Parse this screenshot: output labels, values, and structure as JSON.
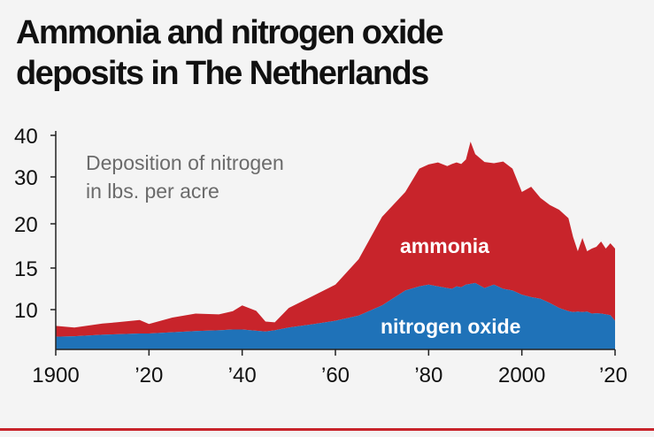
{
  "title_line1": "Ammonia and nitrogen oxide",
  "title_line2": "deposits in The Netherlands",
  "colors": {
    "ammonia": "#c8242b",
    "nitrogen_oxide": "#1f72b8",
    "axis": "#222222",
    "subtitle": "#6b6b6b",
    "rule": "#c8242b"
  },
  "chart_data": {
    "type": "area",
    "stacked": true,
    "subtitle_line1": "Deposition of nitrogen",
    "subtitle_line2": "in lbs. per acre",
    "x": [
      1900,
      1904,
      1910,
      1913,
      1918,
      1920,
      1925,
      1930,
      1935,
      1938,
      1940,
      1943,
      1945,
      1947,
      1950,
      1955,
      1960,
      1965,
      1970,
      1975,
      1978,
      1980,
      1982,
      1984,
      1985,
      1986,
      1987,
      1988,
      1989,
      1990,
      1992,
      1994,
      1996,
      1998,
      2000,
      2002,
      2004,
      2006,
      2008,
      2010,
      2011,
      2012,
      2013,
      2014,
      2015,
      2016,
      2017,
      2018,
      2019,
      2020
    ],
    "series": [
      {
        "name": "nitrogen oxide",
        "values": [
          3.2,
          3.3,
          3.7,
          3.8,
          4.0,
          4.0,
          4.3,
          4.6,
          4.8,
          5.0,
          5.0,
          4.7,
          4.5,
          4.8,
          5.5,
          6.3,
          7.2,
          8.5,
          10.5,
          12.3,
          12.8,
          13.0,
          12.8,
          12.6,
          12.5,
          12.8,
          12.7,
          13.0,
          13.1,
          13.2,
          12.6,
          13.0,
          12.5,
          12.3,
          11.8,
          11.5,
          11.3,
          10.8,
          10.2,
          9.6,
          9.4,
          9.5,
          9.4,
          9.5,
          9.0,
          9.1,
          9.0,
          8.8,
          8.6,
          7.2
        ]
      },
      {
        "name": "ammonia",
        "values": [
          2.7,
          2.2,
          2.8,
          3.0,
          3.4,
          2.4,
          3.7,
          4.4,
          4.0,
          4.6,
          5.5,
          5.0,
          2.5,
          2.0,
          4.7,
          5.3,
          5.8,
          7.5,
          11.0,
          14.5,
          19.2,
          20.0,
          20.7,
          20.0,
          20.6,
          20.7,
          20.4,
          21.2,
          25.4,
          22.3,
          21.0,
          20.3,
          21.2,
          19.7,
          15.0,
          16.4,
          14.2,
          13.2,
          12.8,
          11.6,
          9.1,
          7.4,
          9.0,
          7.4,
          8.2,
          8.3,
          9.0,
          8.4,
          9.2,
          10.0
        ]
      }
    ],
    "series_labels": [
      "ammonia",
      "nitrogen oxide"
    ],
    "xticks": [
      "1900",
      "’20",
      "’40",
      "’60",
      "’80",
      "2000",
      "’20"
    ],
    "xtick_values": [
      1900,
      1920,
      1940,
      1960,
      1980,
      2000,
      2020
    ],
    "yticks": [
      "10",
      "15",
      "20",
      "30",
      "40"
    ],
    "xlim": [
      1900,
      2020
    ],
    "grid": false,
    "legend": "inline labels"
  }
}
